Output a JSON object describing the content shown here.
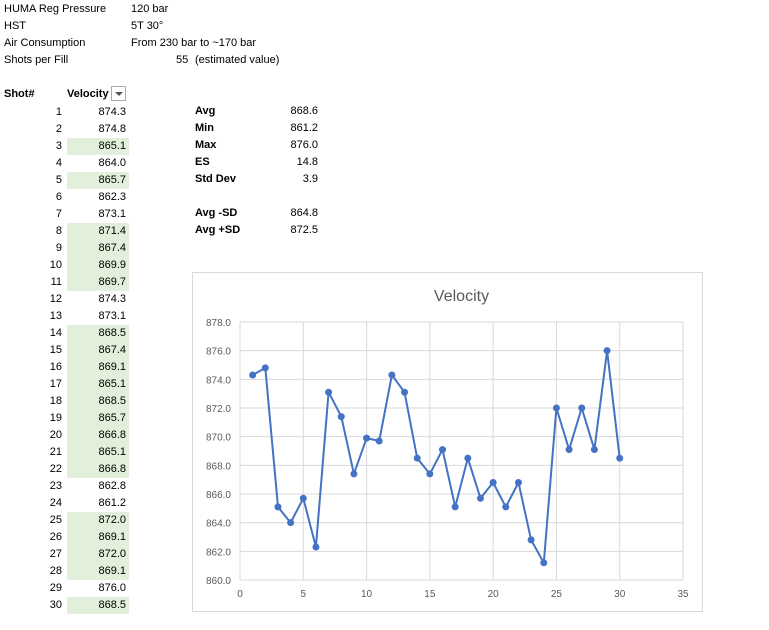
{
  "header": {
    "rows": [
      {
        "label": "HUMA Reg Pressure",
        "value": "120 bar"
      },
      {
        "label": "HST",
        "value": "5T 30°"
      },
      {
        "label": "Air Consumption",
        "value": "From 230 bar to ~170 bar"
      }
    ],
    "shots_label": "Shots per Fill",
    "shots_value": "55",
    "shots_note": "(estimated value)"
  },
  "table": {
    "col_shot": "Shot#",
    "col_velocity": "Velocity",
    "rows": [
      {
        "shot": "1",
        "velocity": "874.3",
        "highlight": false
      },
      {
        "shot": "2",
        "velocity": "874.8",
        "highlight": false
      },
      {
        "shot": "3",
        "velocity": "865.1",
        "highlight": true
      },
      {
        "shot": "4",
        "velocity": "864.0",
        "highlight": false
      },
      {
        "shot": "5",
        "velocity": "865.7",
        "highlight": true
      },
      {
        "shot": "6",
        "velocity": "862.3",
        "highlight": false
      },
      {
        "shot": "7",
        "velocity": "873.1",
        "highlight": false
      },
      {
        "shot": "8",
        "velocity": "871.4",
        "highlight": true
      },
      {
        "shot": "9",
        "velocity": "867.4",
        "highlight": true
      },
      {
        "shot": "10",
        "velocity": "869.9",
        "highlight": true
      },
      {
        "shot": "11",
        "velocity": "869.7",
        "highlight": true
      },
      {
        "shot": "12",
        "velocity": "874.3",
        "highlight": false
      },
      {
        "shot": "13",
        "velocity": "873.1",
        "highlight": false
      },
      {
        "shot": "14",
        "velocity": "868.5",
        "highlight": true
      },
      {
        "shot": "15",
        "velocity": "867.4",
        "highlight": true
      },
      {
        "shot": "16",
        "velocity": "869.1",
        "highlight": true
      },
      {
        "shot": "17",
        "velocity": "865.1",
        "highlight": true
      },
      {
        "shot": "18",
        "velocity": "868.5",
        "highlight": true
      },
      {
        "shot": "19",
        "velocity": "865.7",
        "highlight": true
      },
      {
        "shot": "20",
        "velocity": "866.8",
        "highlight": true
      },
      {
        "shot": "21",
        "velocity": "865.1",
        "highlight": true
      },
      {
        "shot": "22",
        "velocity": "866.8",
        "highlight": true
      },
      {
        "shot": "23",
        "velocity": "862.8",
        "highlight": false
      },
      {
        "shot": "24",
        "velocity": "861.2",
        "highlight": false
      },
      {
        "shot": "25",
        "velocity": "872.0",
        "highlight": true
      },
      {
        "shot": "26",
        "velocity": "869.1",
        "highlight": true
      },
      {
        "shot": "27",
        "velocity": "872.0",
        "highlight": true
      },
      {
        "shot": "28",
        "velocity": "869.1",
        "highlight": true
      },
      {
        "shot": "29",
        "velocity": "876.0",
        "highlight": false
      },
      {
        "shot": "30",
        "velocity": "868.5",
        "highlight": true
      }
    ],
    "highlight_color": "#e2efda"
  },
  "stats": {
    "avg_label": "Avg",
    "avg": "868.6",
    "min_label": "Min",
    "min": "861.2",
    "max_label": "Max",
    "max": "876.0",
    "es_label": "ES",
    "es": "14.8",
    "sd_label": "Std Dev",
    "sd": "3.9",
    "avg_minus_label": "Avg -SD",
    "avg_minus": "864.8",
    "avg_plus_label": "Avg +SD",
    "avg_plus": "872.5"
  },
  "chart_data": {
    "type": "scatter",
    "title": "Velocity",
    "xlabel": "",
    "ylabel": "",
    "xlim": [
      0,
      35
    ],
    "ylim": [
      860,
      878
    ],
    "x_ticks": [
      "0",
      "5",
      "10",
      "15",
      "20",
      "25",
      "30",
      "35"
    ],
    "y_ticks": [
      "860.0",
      "862.0",
      "864.0",
      "866.0",
      "868.0",
      "870.0",
      "872.0",
      "874.0",
      "876.0",
      "878.0"
    ],
    "grid": true,
    "legend": "none",
    "line_color": "#4472c4",
    "x": [
      1,
      2,
      3,
      4,
      5,
      6,
      7,
      8,
      9,
      10,
      11,
      12,
      13,
      14,
      15,
      16,
      17,
      18,
      19,
      20,
      21,
      22,
      23,
      24,
      25,
      26,
      27,
      28,
      29,
      30
    ],
    "y": [
      874.3,
      874.8,
      865.1,
      864.0,
      865.7,
      862.3,
      873.1,
      871.4,
      867.4,
      869.9,
      869.7,
      874.3,
      873.1,
      868.5,
      867.4,
      869.1,
      865.1,
      868.5,
      865.7,
      866.8,
      865.1,
      866.8,
      862.8,
      861.2,
      872.0,
      869.1,
      872.0,
      869.1,
      876.0,
      868.5
    ]
  }
}
